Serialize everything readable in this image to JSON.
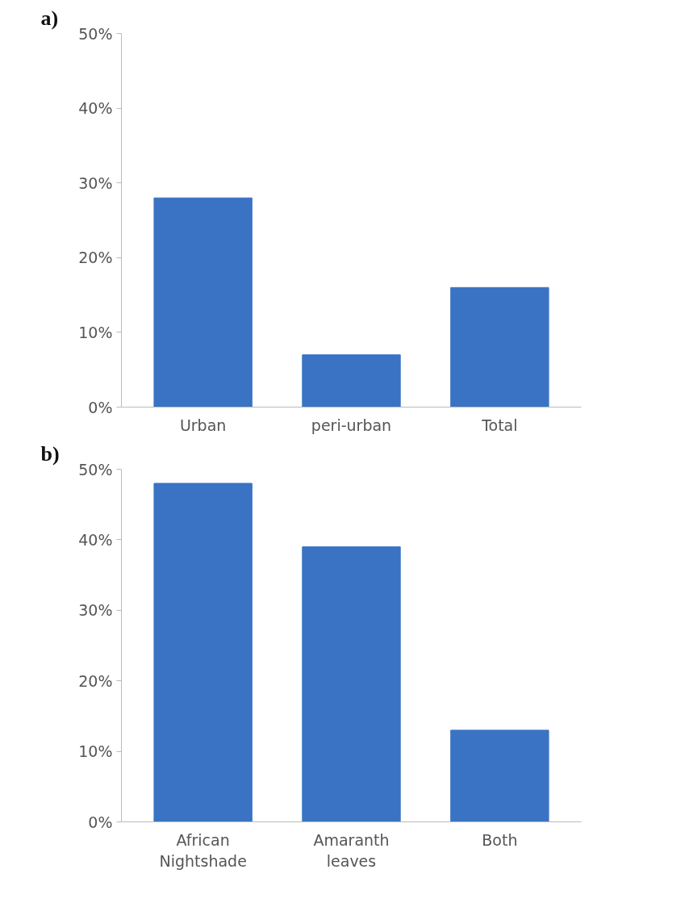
{
  "chart_data": [
    {
      "type": "bar",
      "title": "a)",
      "categories": [
        "Urban",
        "peri-urban",
        "Total"
      ],
      "values": [
        28,
        7,
        16
      ],
      "color": "#3a73c4",
      "ylim": [
        0,
        50
      ],
      "yticks": [
        {
          "value": 0,
          "label": "0%"
        },
        {
          "value": 10,
          "label": "10%"
        },
        {
          "value": 20,
          "label": "20%"
        },
        {
          "value": 30,
          "label": "30%"
        },
        {
          "value": 40,
          "label": "40%"
        },
        {
          "value": 50,
          "label": "50%"
        }
      ],
      "grid": false
    },
    {
      "type": "bar",
      "title": "b)",
      "categories": [
        "African Nightshade",
        "Amaranth leaves",
        "Both"
      ],
      "values": [
        48,
        39,
        13
      ],
      "color": "#3a73c4",
      "ylim": [
        0,
        50
      ],
      "yticks": [
        {
          "value": 0,
          "label": "0%"
        },
        {
          "value": 10,
          "label": "10%"
        },
        {
          "value": 20,
          "label": "20%"
        },
        {
          "value": 30,
          "label": "30%"
        },
        {
          "value": 40,
          "label": "40%"
        },
        {
          "value": 50,
          "label": "50%"
        }
      ],
      "grid": false
    }
  ]
}
